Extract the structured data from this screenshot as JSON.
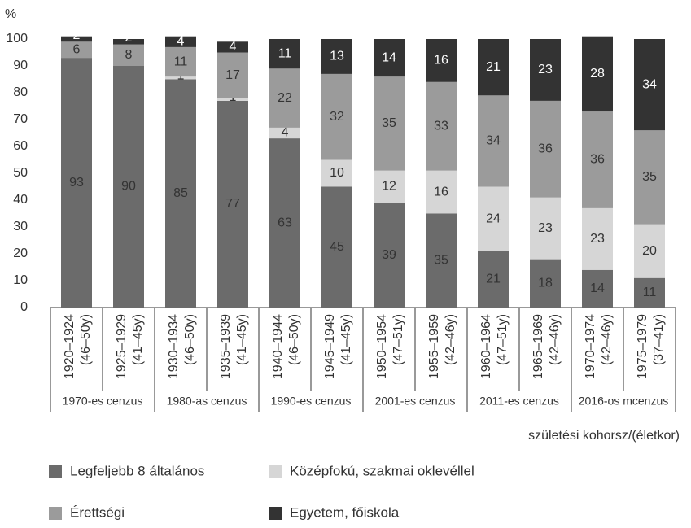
{
  "chart_data": {
    "type": "stacked_bar",
    "y_unit": "%",
    "categories": [
      [
        "1920–1924",
        "(46–50y)"
      ],
      [
        "1925–1929",
        "(41–45y)"
      ],
      [
        "1930–1934",
        "(46–50y)"
      ],
      [
        "1935–1939",
        "(41–45y)"
      ],
      [
        "1940–1944",
        "(46–50y)"
      ],
      [
        "1945–1949",
        "(41–45y)"
      ],
      [
        "1950–1954",
        "(47–51y)"
      ],
      [
        "1955–1959",
        "(42–46y)"
      ],
      [
        "1960–1964",
        "(47–51y)"
      ],
      [
        "1965–1969",
        "(42–46y)"
      ],
      [
        "1970–1974",
        "(42–46y)"
      ],
      [
        "1975–1979",
        "(37–41y)"
      ]
    ],
    "groups": [
      "1970-es cenzus",
      "1980-as cenzus",
      "1990-es cenzus",
      "2001-es cenzus",
      "2011-es cenzus",
      "2016-os mcenzus"
    ],
    "x_label": "születési kohorsz/(életkor)",
    "series": [
      {
        "name": "Legfeljebb 8 általános",
        "color": "#6b6b6b",
        "values": [
          93,
          90,
          85,
          77,
          63,
          45,
          39,
          35,
          21,
          18,
          14,
          11
        ]
      },
      {
        "name": "Középfokú, szakmai oklevéllel",
        "color": "#d6d6d6",
        "values": [
          0,
          0,
          1,
          1,
          4,
          10,
          12,
          16,
          24,
          23,
          23,
          20
        ]
      },
      {
        "name": "Érettségi",
        "color": "#9b9b9b",
        "values": [
          6,
          8,
          11,
          17,
          22,
          32,
          35,
          33,
          34,
          36,
          36,
          35
        ]
      },
      {
        "name": "Egyetem, főiskola",
        "color": "#333333",
        "values": [
          2,
          2,
          4,
          4,
          11,
          13,
          14,
          16,
          21,
          23,
          28,
          34
        ]
      }
    ],
    "ylim": [
      0,
      100
    ],
    "yticks": [
      0,
      10,
      20,
      30,
      40,
      50,
      60,
      70,
      80,
      90,
      100
    ]
  }
}
